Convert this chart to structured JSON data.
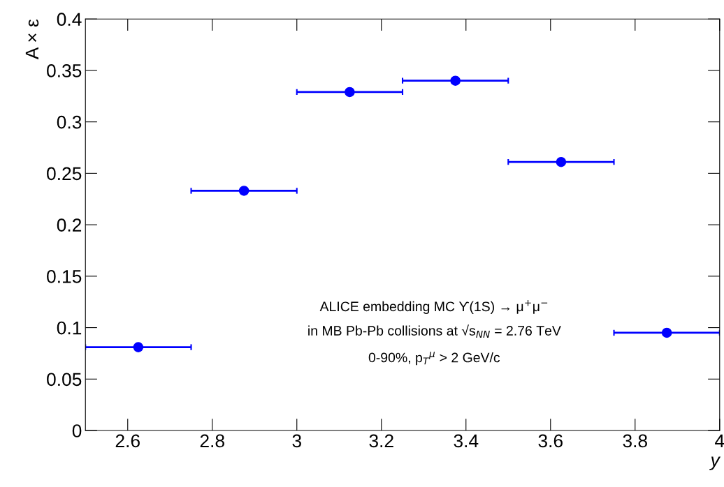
{
  "chart_data": {
    "type": "scatter",
    "xlabel": "y",
    "ylabel": "A × ε",
    "x": [
      2.625,
      2.875,
      3.125,
      3.375,
      3.625,
      3.875
    ],
    "series": [
      {
        "color": "#0000ff",
        "values": [
          0.081,
          0.233,
          0.329,
          0.34,
          0.261,
          0.095
        ],
        "xerrors": [
          0.125,
          0.125,
          0.125,
          0.125,
          0.125,
          0.125
        ]
      }
    ],
    "xlim": [
      2.5,
      4.0
    ],
    "xticks": [
      2.6,
      2.8,
      3,
      3.2,
      3.4,
      3.6,
      3.8,
      4
    ],
    "ylim": [
      0,
      0.4
    ],
    "yticks": [
      0,
      0.05,
      0.1,
      0.15,
      0.2,
      0.25,
      0.3,
      0.35,
      0.4
    ],
    "marker": "circle",
    "grid": false,
    "legend": false,
    "annotations": [
      "ALICE embedding MC ϒ(1S) → μ$^{+}$μ$^{−}$",
      "in MB Pb-Pb collisions at √s$_{NN}$ = 2.76 TeV",
      "0-90%, p$_{T}$$^{μ}$ > 2 GeV/c"
    ]
  }
}
